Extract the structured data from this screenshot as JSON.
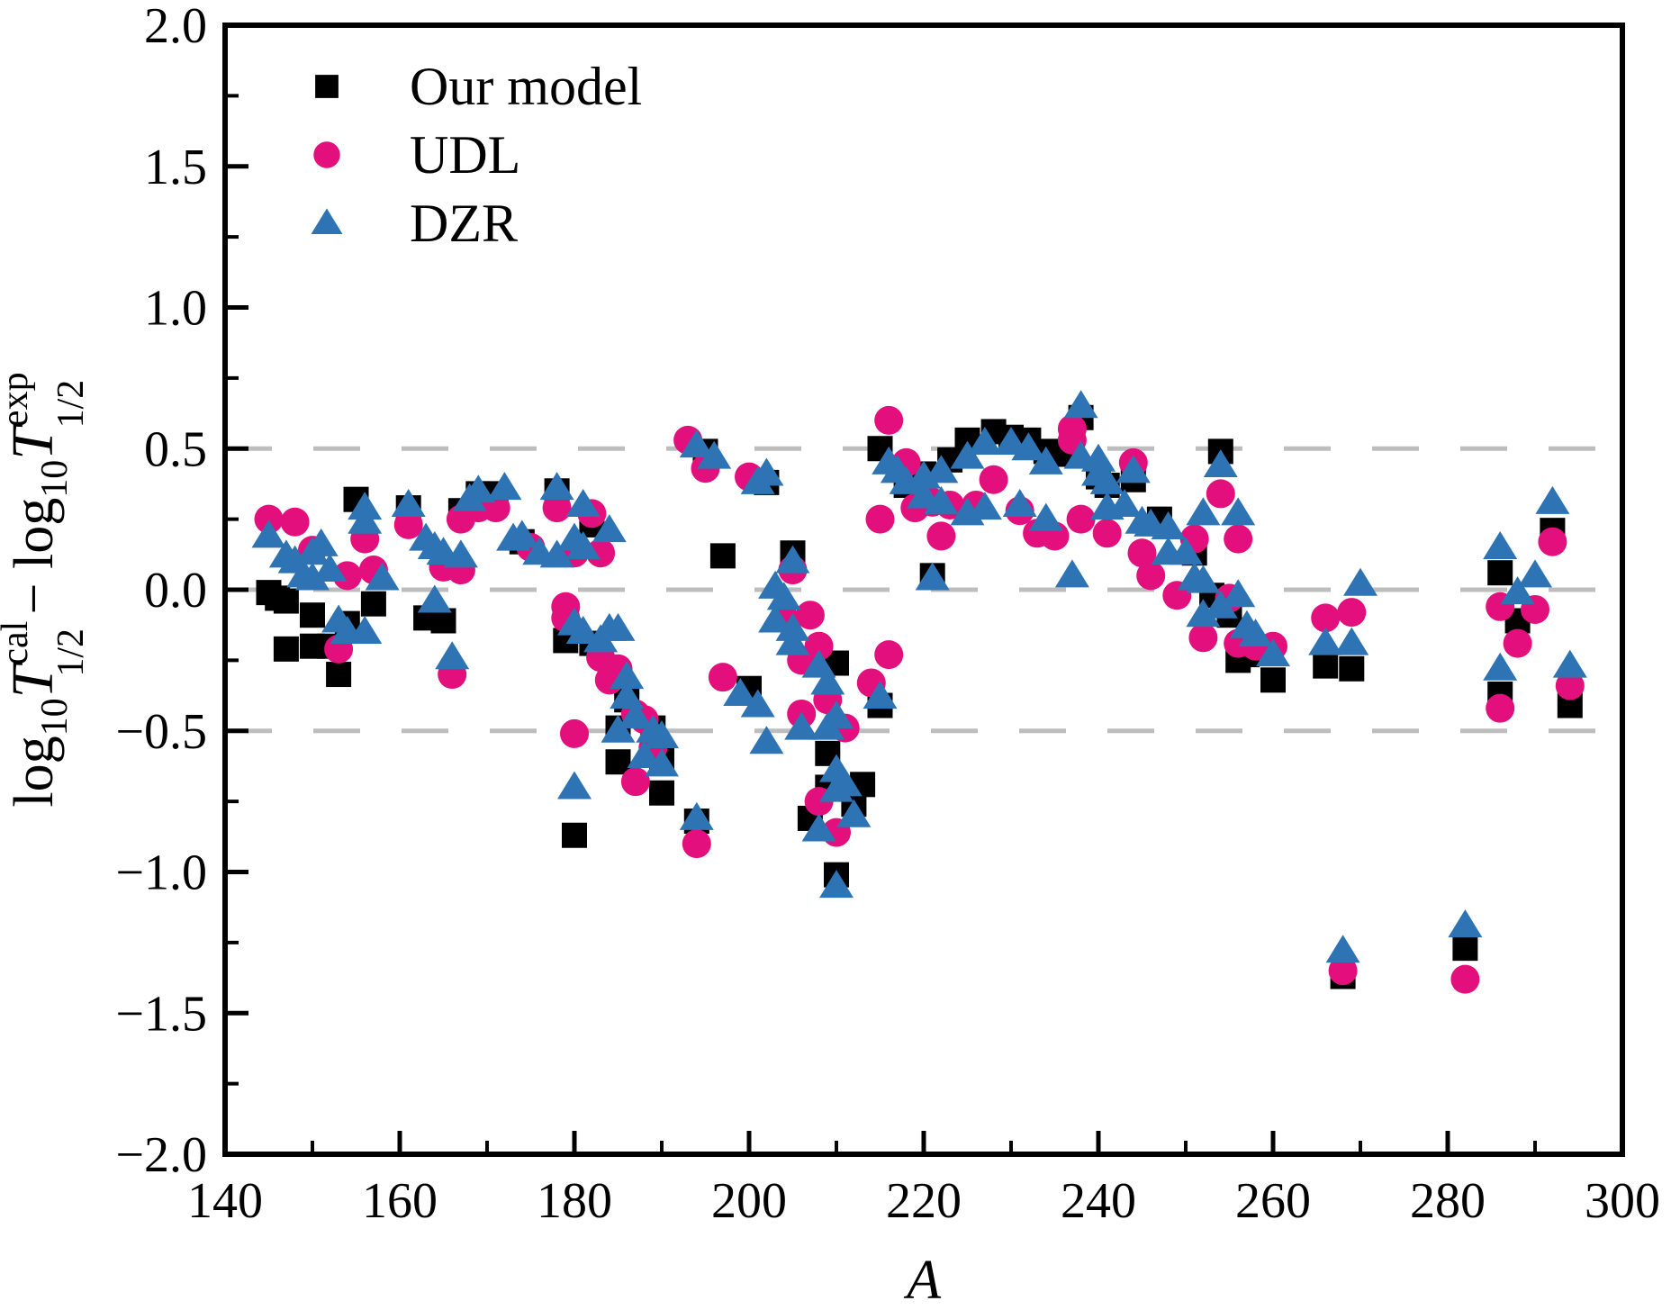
{
  "figure": {
    "background": "#ffffff",
    "frame_color": "#000000",
    "gridline_color": "#bdbdbd"
  },
  "legend": {
    "position": "top-left",
    "items": [
      {
        "label": "Our model",
        "marker": "square",
        "color": "#000000"
      },
      {
        "label": "UDL",
        "marker": "circle",
        "color": "#e20f7c"
      },
      {
        "label": "DZR",
        "marker": "triangle",
        "color": "#2e74b5"
      }
    ]
  },
  "chart_data": {
    "type": "scatter",
    "title": "",
    "xlabel": "A",
    "ylabel": "log10 T(cal,1/2) - log10 T(exp,1/2)",
    "ylabel_rich": [
      [
        "log",
        "n"
      ],
      [
        "10",
        "sub"
      ],
      [
        "T",
        "it"
      ],
      [
        "cal",
        "sup"
      ],
      [
        "1/2",
        "subx"
      ],
      [
        " − ",
        "n"
      ],
      [
        "log",
        "n"
      ],
      [
        "10",
        "sub"
      ],
      [
        "T",
        "it"
      ],
      [
        "exp",
        "sup"
      ],
      [
        "1/2",
        "subx"
      ]
    ],
    "xlim": [
      140,
      300
    ],
    "ylim": [
      -2.0,
      2.0
    ],
    "x_major_ticks": [
      140,
      160,
      180,
      200,
      220,
      240,
      260,
      280,
      300
    ],
    "x_tick_labels": [
      "140",
      "160",
      "180",
      "200",
      "220",
      "240",
      "260",
      "280",
      "300"
    ],
    "x_minor_step": 10,
    "y_major_ticks": [
      2.0,
      1.5,
      1.0,
      0.5,
      0.0,
      -0.5,
      -1.0,
      -1.5,
      -2.0
    ],
    "y_tick_labels": [
      "2.0",
      "1.5",
      "1.0",
      "0.5",
      "0.0",
      "−0.5",
      "−1.0",
      "−1.5",
      "−2.0"
    ],
    "y_minor_step": 0.25,
    "gridlines_y": [
      0.5,
      0.0,
      -0.5
    ],
    "grid_dashed": true,
    "legend_position": "top-left",
    "series": [
      {
        "name": "Our model",
        "marker": "square",
        "color": "#000000",
        "points": [
          [
            145,
            -0.01
          ],
          [
            146,
            -0.03
          ],
          [
            147,
            -0.04
          ],
          [
            147,
            -0.21
          ],
          [
            150,
            -0.09
          ],
          [
            150,
            -0.2
          ],
          [
            152,
            -0.2
          ],
          [
            153,
            -0.3
          ],
          [
            154,
            -0.12
          ],
          [
            155,
            0.32
          ],
          [
            157,
            -0.05
          ],
          [
            161,
            0.29
          ],
          [
            163,
            -0.1
          ],
          [
            165,
            -0.11
          ],
          [
            167,
            0.28
          ],
          [
            169,
            0.34
          ],
          [
            171,
            0.34
          ],
          [
            174,
            0.17
          ],
          [
            178,
            0.35
          ],
          [
            179,
            -0.18
          ],
          [
            180,
            -0.87
          ],
          [
            182,
            0.23
          ],
          [
            182,
            -0.19
          ],
          [
            185,
            -0.49
          ],
          [
            185,
            -0.61
          ],
          [
            186,
            -0.39
          ],
          [
            189,
            -0.49
          ],
          [
            190,
            -0.6
          ],
          [
            190,
            -0.72
          ],
          [
            194,
            -0.82
          ],
          [
            195,
            0.49
          ],
          [
            197,
            0.12
          ],
          [
            200,
            -0.35
          ],
          [
            202,
            0.38
          ],
          [
            205,
            0.13
          ],
          [
            207,
            -0.81
          ],
          [
            208,
            -0.26
          ],
          [
            209,
            -0.58
          ],
          [
            209,
            -0.7
          ],
          [
            210,
            -0.26
          ],
          [
            210,
            -1.01
          ],
          [
            212,
            -0.76
          ],
          [
            213,
            -0.69
          ],
          [
            215,
            0.5
          ],
          [
            215,
            -0.41
          ],
          [
            218,
            0.37
          ],
          [
            220,
            0.41
          ],
          [
            221,
            0.05
          ],
          [
            223,
            0.46
          ],
          [
            225,
            0.53
          ],
          [
            228,
            0.56
          ],
          [
            230,
            0.54
          ],
          [
            232,
            0.53
          ],
          [
            234,
            0.49
          ],
          [
            236,
            0.48
          ],
          [
            238,
            0.61
          ],
          [
            240,
            0.4
          ],
          [
            241,
            0.37
          ],
          [
            244,
            0.39
          ],
          [
            247,
            0.25
          ],
          [
            251,
            0.13
          ],
          [
            253,
            -0.02
          ],
          [
            254,
            0.49
          ],
          [
            255,
            -0.09
          ],
          [
            256,
            -0.25
          ],
          [
            257,
            -0.23
          ],
          [
            260,
            -0.32
          ],
          [
            266,
            -0.27
          ],
          [
            268,
            -1.37
          ],
          [
            269,
            -0.28
          ],
          [
            282,
            -1.27
          ],
          [
            286,
            0.06
          ],
          [
            286,
            -0.37
          ],
          [
            288,
            -0.11
          ],
          [
            292,
            0.21
          ],
          [
            294,
            -0.41
          ]
        ]
      },
      {
        "name": "UDL",
        "marker": "circle",
        "color": "#e20f7c",
        "points": [
          [
            145,
            0.25
          ],
          [
            148,
            0.24
          ],
          [
            150,
            0.14
          ],
          [
            153,
            -0.21
          ],
          [
            154,
            0.05
          ],
          [
            156,
            0.18
          ],
          [
            157,
            0.07
          ],
          [
            161,
            0.23
          ],
          [
            165,
            0.08
          ],
          [
            166,
            -0.3
          ],
          [
            167,
            0.07
          ],
          [
            167,
            0.25
          ],
          [
            169,
            0.29
          ],
          [
            171,
            0.29
          ],
          [
            175,
            0.15
          ],
          [
            178,
            0.29
          ],
          [
            179,
            -0.06
          ],
          [
            179,
            -0.1
          ],
          [
            180,
            0.13
          ],
          [
            180,
            -0.51
          ],
          [
            182,
            0.27
          ],
          [
            183,
            0.13
          ],
          [
            183,
            -0.24
          ],
          [
            184,
            -0.32
          ],
          [
            185,
            -0.28
          ],
          [
            187,
            -0.44
          ],
          [
            187,
            -0.68
          ],
          [
            188,
            -0.46
          ],
          [
            189,
            -0.56
          ],
          [
            193,
            0.53
          ],
          [
            194,
            -0.9
          ],
          [
            195,
            0.43
          ],
          [
            197,
            -0.31
          ],
          [
            200,
            0.4
          ],
          [
            204,
            -0.1
          ],
          [
            205,
            0.07
          ],
          [
            206,
            -0.25
          ],
          [
            206,
            -0.44
          ],
          [
            207,
            -0.09
          ],
          [
            208,
            -0.2
          ],
          [
            208,
            -0.75
          ],
          [
            209,
            -0.39
          ],
          [
            210,
            -0.86
          ],
          [
            211,
            -0.49
          ],
          [
            214,
            -0.33
          ],
          [
            215,
            0.25
          ],
          [
            216,
            0.6
          ],
          [
            216,
            -0.23
          ],
          [
            218,
            0.45
          ],
          [
            219,
            0.29
          ],
          [
            221,
            0.31
          ],
          [
            222,
            0.19
          ],
          [
            223,
            0.3
          ],
          [
            226,
            0.3
          ],
          [
            228,
            0.39
          ],
          [
            231,
            0.28
          ],
          [
            233,
            0.2
          ],
          [
            235,
            0.19
          ],
          [
            237,
            0.57
          ],
          [
            237,
            0.53
          ],
          [
            238,
            0.25
          ],
          [
            241,
            0.2
          ],
          [
            244,
            0.45
          ],
          [
            245,
            0.13
          ],
          [
            246,
            0.05
          ],
          [
            249,
            -0.02
          ],
          [
            251,
            0.18
          ],
          [
            252,
            -0.17
          ],
          [
            254,
            0.34
          ],
          [
            255,
            -0.03
          ],
          [
            256,
            0.18
          ],
          [
            256,
            -0.19
          ],
          [
            258,
            -0.2
          ],
          [
            260,
            -0.2
          ],
          [
            266,
            -0.1
          ],
          [
            268,
            -1.35
          ],
          [
            269,
            -0.08
          ],
          [
            282,
            -1.38
          ],
          [
            286,
            -0.06
          ],
          [
            286,
            -0.42
          ],
          [
            288,
            -0.19
          ],
          [
            290,
            -0.07
          ],
          [
            292,
            0.17
          ],
          [
            294,
            -0.34
          ]
        ]
      },
      {
        "name": "DZR",
        "marker": "triangle",
        "color": "#2e74b5",
        "points": [
          [
            145,
            0.19
          ],
          [
            147,
            0.12
          ],
          [
            148,
            0.1
          ],
          [
            149,
            0.05
          ],
          [
            150,
            0.13
          ],
          [
            150,
            0.04
          ],
          [
            151,
            0.16
          ],
          [
            152,
            0.07
          ],
          [
            153,
            -0.11
          ],
          [
            154,
            -0.15
          ],
          [
            156,
            -0.15
          ],
          [
            156,
            0.29
          ],
          [
            156,
            0.24
          ],
          [
            158,
            0.04
          ],
          [
            161,
            0.3
          ],
          [
            163,
            0.18
          ],
          [
            164,
            0.15
          ],
          [
            164,
            -0.04
          ],
          [
            165,
            0.13
          ],
          [
            166,
            -0.24
          ],
          [
            167,
            0.12
          ],
          [
            168,
            0.32
          ],
          [
            169,
            0.35
          ],
          [
            172,
            0.36
          ],
          [
            173,
            0.18
          ],
          [
            174,
            0.19
          ],
          [
            176,
            0.13
          ],
          [
            178,
            0.36
          ],
          [
            178,
            0.12
          ],
          [
            180,
            0.18
          ],
          [
            180,
            -0.12
          ],
          [
            180,
            -0.7
          ],
          [
            181,
            0.15
          ],
          [
            181,
            0.3
          ],
          [
            181,
            -0.15
          ],
          [
            183,
            -0.18
          ],
          [
            184,
            0.21
          ],
          [
            184,
            -0.14
          ],
          [
            185,
            -0.14
          ],
          [
            185,
            -0.5
          ],
          [
            186,
            -0.31
          ],
          [
            186,
            -0.38
          ],
          [
            187,
            -0.45
          ],
          [
            188,
            -0.59
          ],
          [
            189,
            -0.5
          ],
          [
            190,
            -0.52
          ],
          [
            190,
            -0.62
          ],
          [
            194,
            0.51
          ],
          [
            194,
            -0.81
          ],
          [
            196,
            0.47
          ],
          [
            199,
            -0.37
          ],
          [
            201,
            0.38
          ],
          [
            201,
            -0.41
          ],
          [
            202,
            0.41
          ],
          [
            202,
            -0.54
          ],
          [
            203,
            0.01
          ],
          [
            203,
            -0.11
          ],
          [
            204,
            -0.03
          ],
          [
            205,
            0.1
          ],
          [
            205,
            -0.14
          ],
          [
            205,
            -0.19
          ],
          [
            206,
            -0.49
          ],
          [
            208,
            -0.27
          ],
          [
            208,
            -0.85
          ],
          [
            209,
            -0.33
          ],
          [
            209,
            -0.49
          ],
          [
            210,
            -0.45
          ],
          [
            210,
            -0.64
          ],
          [
            210,
            -0.71
          ],
          [
            210,
            -1.05
          ],
          [
            211,
            -0.69
          ],
          [
            212,
            -0.8
          ],
          [
            215,
            -0.38
          ],
          [
            216,
            0.45
          ],
          [
            217,
            0.42
          ],
          [
            218,
            0.38
          ],
          [
            220,
            0.4
          ],
          [
            220,
            0.33
          ],
          [
            221,
            0.04
          ],
          [
            222,
            0.42
          ],
          [
            222,
            0.31
          ],
          [
            225,
            0.47
          ],
          [
            225,
            0.27
          ],
          [
            227,
            0.52
          ],
          [
            227,
            0.29
          ],
          [
            230,
            0.52
          ],
          [
            231,
            0.3
          ],
          [
            232,
            0.5
          ],
          [
            234,
            0.45
          ],
          [
            234,
            0.25
          ],
          [
            237,
            0.05
          ],
          [
            238,
            0.65
          ],
          [
            238,
            0.47
          ],
          [
            240,
            0.46
          ],
          [
            240,
            0.41
          ],
          [
            241,
            0.38
          ],
          [
            241,
            0.29
          ],
          [
            243,
            0.3
          ],
          [
            244,
            0.42
          ],
          [
            245,
            0.24
          ],
          [
            246,
            0.23
          ],
          [
            248,
            0.22
          ],
          [
            248,
            0.13
          ],
          [
            250,
            0.13
          ],
          [
            251,
            0.04
          ],
          [
            252,
            0.27
          ],
          [
            252,
            0.03
          ],
          [
            252,
            -0.09
          ],
          [
            254,
            0.44
          ],
          [
            254,
            -0.06
          ],
          [
            256,
            0.27
          ],
          [
            256,
            -0.02
          ],
          [
            257,
            -0.13
          ],
          [
            258,
            -0.16
          ],
          [
            260,
            -0.23
          ],
          [
            266,
            -0.19
          ],
          [
            268,
            -1.28
          ],
          [
            269,
            -0.19
          ],
          [
            270,
            0.02
          ],
          [
            282,
            -1.19
          ],
          [
            286,
            0.15
          ],
          [
            286,
            -0.28
          ],
          [
            288,
            -0.01
          ],
          [
            290,
            0.05
          ],
          [
            292,
            0.31
          ],
          [
            294,
            -0.27
          ]
        ]
      }
    ]
  }
}
